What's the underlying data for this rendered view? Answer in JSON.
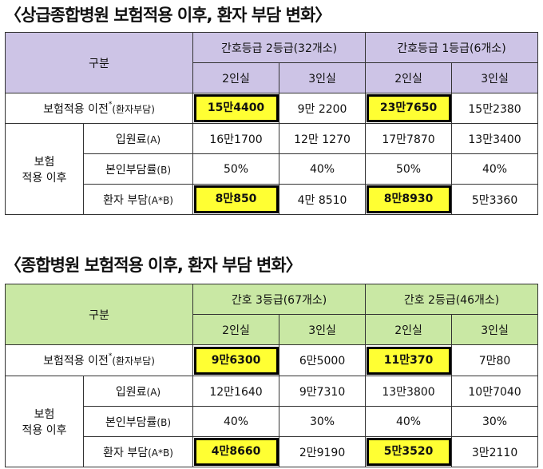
{
  "tables": [
    {
      "title": "〈상급종합병원 보험적용 이후, 환자 부담 변화〉",
      "header": {
        "category": "구분",
        "groups": [
          "간호등급 2등급(32개소)",
          "간호등급 1등급(6개소)"
        ],
        "rooms": [
          "2인실",
          "3인실",
          "2인실",
          "3인실"
        ]
      },
      "before": {
        "label_main": "보험적용 이전",
        "label_sup": "*",
        "label_sub": "(환자부담)",
        "values": [
          "15만4400",
          "9만 2200",
          "23만7650",
          "15만2380"
        ]
      },
      "after_group_line1": "보험",
      "after_group_line2": "적용 이후",
      "rows": [
        {
          "label_main": "입원료",
          "label_sub": "(A)",
          "values": [
            "16만1700",
            "12만 1270",
            "17만7870",
            "13만3400"
          ]
        },
        {
          "label_main": "본인부담률",
          "label_sub": "(B)",
          "values": [
            "50%",
            "40%",
            "50%",
            "40%"
          ]
        },
        {
          "label_main": "환자 부담",
          "label_sub": "(A*B)",
          "values": [
            "8만850",
            "4만 8510",
            "8만8930",
            "5만3360"
          ]
        }
      ],
      "header_color": "#cdc4e6"
    },
    {
      "title": "〈종합병원 보험적용 이후, 환자 부담 변화〉",
      "header": {
        "category": "구분",
        "groups": [
          "간호 3등급(67개소)",
          "간호 2등급(46개소)"
        ],
        "rooms": [
          "2인실",
          "3인실",
          "2인실",
          "3인실"
        ]
      },
      "before": {
        "label_main": "보험적용 이전",
        "label_sup": "*",
        "label_sub": "(환자부담)",
        "values": [
          "9만6300",
          "6만5000",
          "11만370",
          "7만80"
        ]
      },
      "after_group_line1": "보험",
      "after_group_line2": "적용 이후",
      "rows": [
        {
          "label_main": "입원료",
          "label_sub": "(A)",
          "values": [
            "12만1640",
            "9만7310",
            "13만3800",
            "10만7040"
          ]
        },
        {
          "label_main": "본인부담률",
          "label_sub": "(B)",
          "values": [
            "40%",
            "30%",
            "40%",
            "30%"
          ]
        },
        {
          "label_main": "환자 부담",
          "label_sub": "(A*B)",
          "values": [
            "4만8660",
            "2만9190",
            "5만3520",
            "3만2110"
          ]
        }
      ],
      "header_color": "#c9e8a4"
    }
  ],
  "highlight_color": "#ffff33"
}
